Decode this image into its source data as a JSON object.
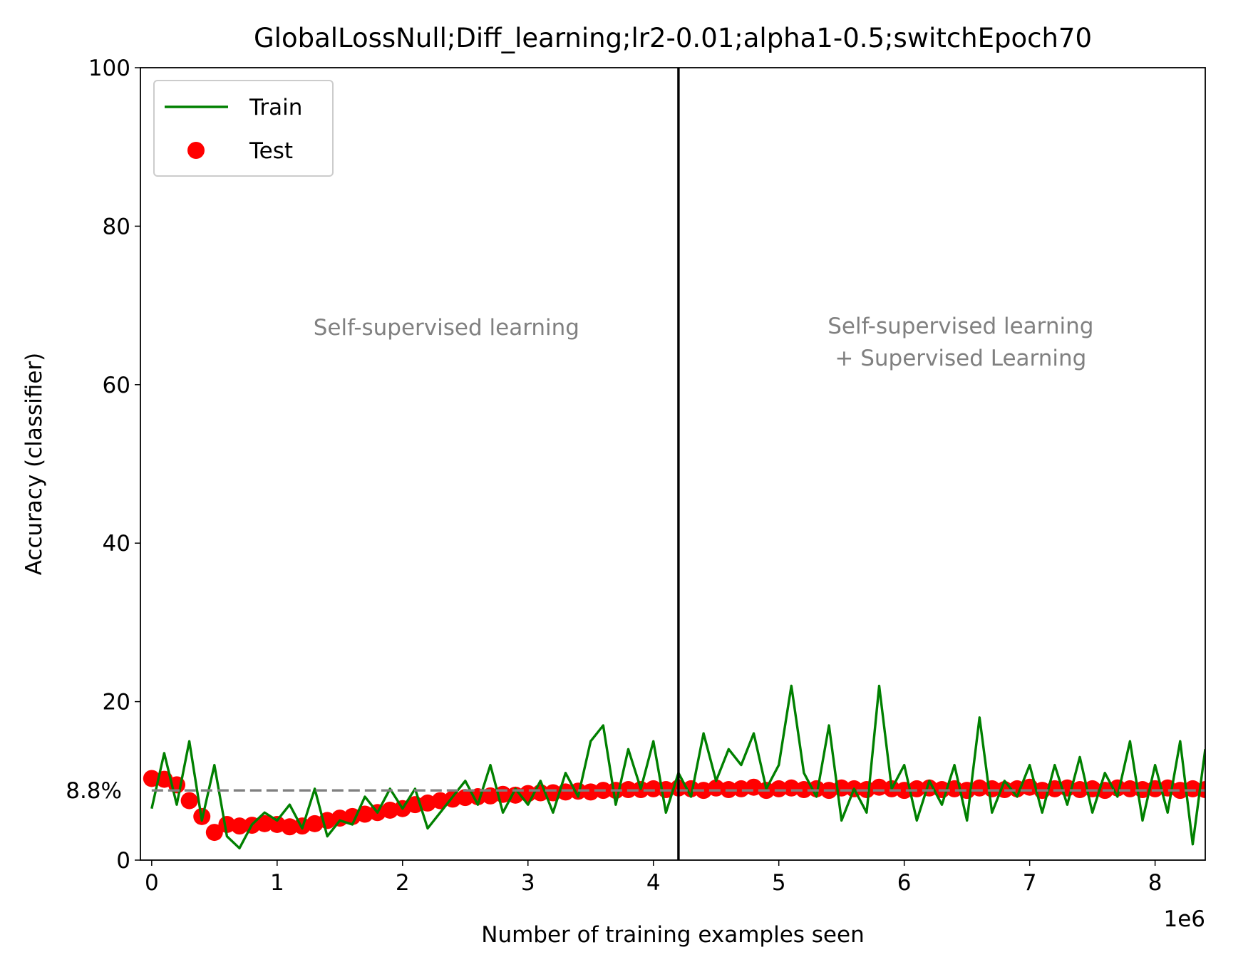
{
  "chart_data": {
    "type": "line",
    "title": "GlobalLossNull;Diff_learning;lr2-0.01;alpha1-0.5;switchEpoch70",
    "xlabel": "Number of training examples seen",
    "ylabel": "Accuracy (classifier)",
    "x_offset_label": "1e6",
    "xlim": [
      -0.09,
      8.4
    ],
    "xticks": [
      0,
      1,
      2,
      3,
      4,
      5,
      6,
      7,
      8
    ],
    "ylim": [
      0,
      100
    ],
    "yticks": [
      0,
      20,
      40,
      60,
      80,
      100
    ],
    "legend": "upper left",
    "vline": 4.2,
    "hline": {
      "value": 8.8,
      "label": "8.8%",
      "color": "#808080"
    },
    "annotations": [
      {
        "lines": [
          "Self-supervised learning"
        ]
      },
      {
        "lines": [
          "Self-supervised learning",
          "+ Supervised Learning"
        ]
      }
    ],
    "x": [
      0,
      0.1,
      0.2,
      0.3,
      0.4,
      0.5,
      0.6,
      0.7,
      0.8,
      0.9,
      1,
      1.1,
      1.2,
      1.3,
      1.4,
      1.5,
      1.6,
      1.7,
      1.8,
      1.9,
      2,
      2.1,
      2.2,
      2.3,
      2.4,
      2.5,
      2.6,
      2.7,
      2.8,
      2.9,
      3,
      3.1,
      3.2,
      3.3,
      3.4,
      3.5,
      3.6,
      3.7,
      3.8,
      3.9,
      4,
      4.1,
      4.2,
      4.3,
      4.4,
      4.5,
      4.6,
      4.7,
      4.8,
      4.9,
      5,
      5.1,
      5.2,
      5.3,
      5.4,
      5.5,
      5.6,
      5.7,
      5.8,
      5.9,
      6,
      6.1,
      6.2,
      6.3,
      6.4,
      6.5,
      6.6,
      6.7,
      6.8,
      6.9,
      7,
      7.1,
      7.2,
      7.3,
      7.4,
      7.5,
      7.6,
      7.7,
      7.8,
      7.9,
      8,
      8.1,
      8.2,
      8.3,
      8.4
    ],
    "series": [
      {
        "name": "Train",
        "kind": "line",
        "color": "#008000",
        "values": [
          6.5,
          13.5,
          7,
          15,
          5,
          12,
          3,
          1.5,
          4.5,
          6,
          5,
          7,
          4,
          9,
          3,
          5,
          4.5,
          8,
          6,
          9,
          6.5,
          9,
          4,
          6,
          8,
          10,
          7,
          12,
          6,
          9,
          7,
          10,
          6,
          11,
          8,
          15,
          17,
          7,
          14,
          9,
          15,
          6,
          11,
          8,
          16,
          10,
          14,
          12,
          16,
          9,
          12,
          22,
          11,
          8,
          17,
          5,
          9,
          6,
          22,
          9,
          12,
          5,
          10,
          7,
          12,
          5,
          18,
          6,
          10,
          8,
          12,
          6,
          12,
          7,
          13,
          6,
          11,
          8,
          15,
          5,
          12,
          6,
          15,
          2,
          14
        ]
      },
      {
        "name": "Test",
        "kind": "scatter",
        "color": "#ff0000",
        "values": [
          10.3,
          10.2,
          9.5,
          7.5,
          5.5,
          3.5,
          4.5,
          4.3,
          4.4,
          4.6,
          4.5,
          4.2,
          4.3,
          4.6,
          5,
          5.3,
          5.5,
          5.8,
          6,
          6.3,
          6.5,
          7,
          7.2,
          7.5,
          7.7,
          7.9,
          8,
          8.1,
          8.3,
          8.2,
          8.4,
          8.5,
          8.5,
          8.6,
          8.7,
          8.6,
          8.8,
          8.8,
          8.9,
          8.9,
          9,
          8.9,
          9.1,
          9,
          8.8,
          9.1,
          8.9,
          9,
          9.2,
          8.8,
          9,
          9.1,
          8.9,
          9,
          8.8,
          9.1,
          9,
          8.9,
          9.2,
          9,
          8.8,
          9,
          9.1,
          8.9,
          9,
          8.8,
          9.1,
          9,
          8.9,
          9,
          9.2,
          8.8,
          9,
          9.1,
          8.9,
          9,
          8.8,
          9.1,
          9,
          8.9,
          9,
          9.1,
          8.8,
          9,
          8.9
        ]
      }
    ]
  }
}
